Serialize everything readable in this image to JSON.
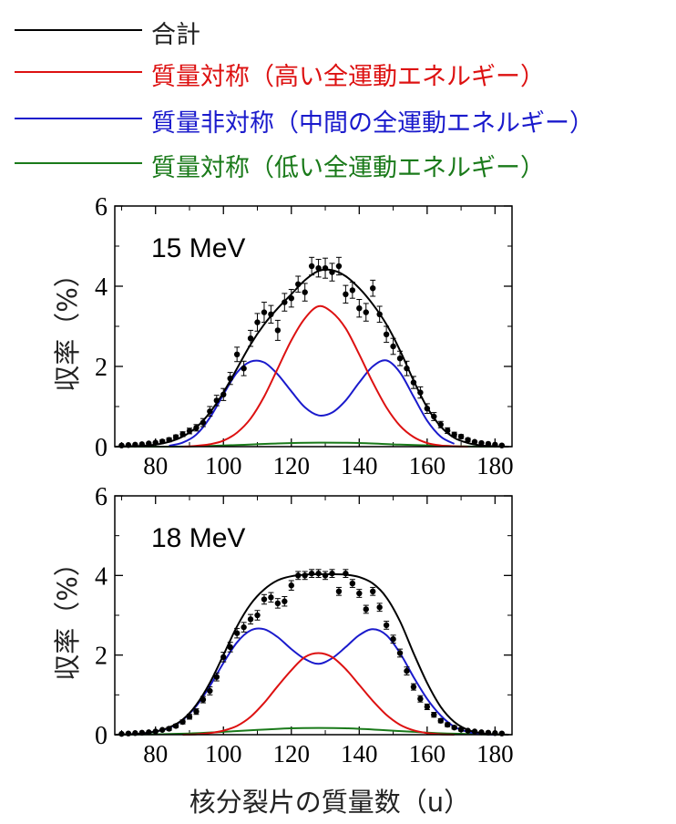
{
  "legend": {
    "items": [
      {
        "label": "合計",
        "color": "#000000"
      },
      {
        "label": "質量対称（高い全運動エネルギー）",
        "color": "#dd1111"
      },
      {
        "label": "質量非対称（中間の全運動エネルギー）",
        "color": "#1a1acc"
      },
      {
        "label": "質量対称（低い全運動エネルギー）",
        "color": "#1a7a1a"
      }
    ]
  },
  "xlabel": "核分裂片の質量数（u）",
  "chart_data": [
    {
      "type": "line",
      "title": "15 MeV",
      "ylabel": "収率（%）",
      "xlim": [
        68,
        185
      ],
      "ylim": [
        0,
        6
      ],
      "x_ticks": [
        80,
        100,
        120,
        140,
        160,
        180
      ],
      "y_ticks": [
        0,
        2,
        4,
        6
      ],
      "series": [
        {
          "name": "合計",
          "color": "#000000",
          "x": [
            68,
            72,
            76,
            80,
            84,
            88,
            92,
            96,
            100,
            104,
            108,
            112,
            116,
            120,
            124,
            128,
            132,
            136,
            140,
            144,
            148,
            152,
            156,
            160,
            164,
            168,
            172,
            176,
            180,
            184
          ],
          "values": [
            0.0,
            0.01,
            0.02,
            0.05,
            0.12,
            0.25,
            0.48,
            0.85,
            1.35,
            1.95,
            2.55,
            3.05,
            3.45,
            3.8,
            4.15,
            4.38,
            4.4,
            4.25,
            3.95,
            3.55,
            3.05,
            2.4,
            1.65,
            0.98,
            0.5,
            0.22,
            0.09,
            0.03,
            0.01,
            0.0
          ]
        },
        {
          "name": "質量対称（高い全運動エネルギー）",
          "color": "#dd1111",
          "x": [
            88,
            92,
            96,
            100,
            104,
            108,
            112,
            116,
            120,
            124,
            128,
            132,
            136,
            140,
            144,
            148,
            152,
            156,
            160,
            164,
            168,
            172
          ],
          "values": [
            0.0,
            0.02,
            0.06,
            0.15,
            0.35,
            0.7,
            1.25,
            1.95,
            2.65,
            3.2,
            3.5,
            3.35,
            2.95,
            2.3,
            1.6,
            0.98,
            0.52,
            0.24,
            0.09,
            0.03,
            0.01,
            0.0
          ]
        },
        {
          "name": "質量非対称（中間の全運動エネルギー）",
          "color": "#1a1acc",
          "x": [
            84,
            88,
            92,
            96,
            100,
            104,
            108,
            112,
            116,
            120,
            124,
            128,
            132,
            136,
            140,
            144,
            148,
            152,
            156,
            160,
            164,
            168
          ],
          "values": [
            0.02,
            0.1,
            0.3,
            0.72,
            1.3,
            1.85,
            2.12,
            2.1,
            1.8,
            1.38,
            0.98,
            0.78,
            0.85,
            1.15,
            1.6,
            2.0,
            2.15,
            1.85,
            1.25,
            0.65,
            0.25,
            0.07
          ]
        },
        {
          "name": "質量対称（低い全運動エネルギー）",
          "color": "#1a7a1a",
          "x": [
            68,
            80,
            92,
            104,
            116,
            128,
            140,
            152,
            164,
            176,
            184
          ],
          "values": [
            0.0,
            0.0,
            0.01,
            0.04,
            0.08,
            0.1,
            0.09,
            0.05,
            0.02,
            0.0,
            0.0
          ]
        }
      ],
      "points": {
        "x": [
          70,
          72,
          74,
          76,
          78,
          80,
          82,
          84,
          86,
          88,
          90,
          92,
          94,
          96,
          98,
          100,
          102,
          104,
          106,
          108,
          110,
          112,
          114,
          116,
          118,
          120,
          122,
          124,
          126,
          128,
          130,
          132,
          134,
          136,
          138,
          140,
          142,
          144,
          146,
          148,
          150,
          152,
          154,
          156,
          158,
          160,
          162,
          164,
          166,
          168,
          170,
          172,
          174,
          176,
          178,
          180,
          182
        ],
        "y": [
          0.03,
          0.04,
          0.05,
          0.06,
          0.08,
          0.1,
          0.13,
          0.17,
          0.24,
          0.31,
          0.39,
          0.47,
          0.6,
          0.88,
          1.15,
          1.3,
          1.7,
          2.3,
          1.95,
          2.7,
          3.1,
          3.35,
          3.3,
          2.9,
          3.6,
          3.7,
          4.05,
          3.85,
          4.5,
          4.45,
          4.45,
          4.35,
          4.5,
          3.8,
          3.9,
          3.45,
          3.35,
          3.95,
          3.3,
          2.8,
          2.5,
          2.2,
          1.95,
          1.6,
          1.35,
          0.95,
          0.75,
          0.55,
          0.4,
          0.3,
          0.25,
          0.17,
          0.12,
          0.09,
          0.07,
          0.05,
          0.03
        ],
        "err": [
          0.02,
          0.02,
          0.02,
          0.02,
          0.03,
          0.03,
          0.04,
          0.05,
          0.05,
          0.06,
          0.07,
          0.08,
          0.1,
          0.12,
          0.13,
          0.15,
          0.15,
          0.18,
          0.18,
          0.2,
          0.22,
          0.25,
          0.22,
          0.25,
          0.22,
          0.22,
          0.2,
          0.22,
          0.22,
          0.22,
          0.25,
          0.22,
          0.22,
          0.22,
          0.2,
          0.22,
          0.22,
          0.2,
          0.2,
          0.2,
          0.2,
          0.18,
          0.18,
          0.15,
          0.14,
          0.12,
          0.1,
          0.08,
          0.07,
          0.06,
          0.05,
          0.04,
          0.03,
          0.03,
          0.03,
          0.02,
          0.02
        ]
      }
    },
    {
      "type": "line",
      "title": "18 MeV",
      "ylabel": "収率（%）",
      "xlim": [
        68,
        185
      ],
      "ylim": [
        0,
        6
      ],
      "x_ticks": [
        80,
        100,
        120,
        140,
        160,
        180
      ],
      "y_ticks": [
        0,
        2,
        4,
        6
      ],
      "series": [
        {
          "name": "合計",
          "color": "#000000",
          "x": [
            68,
            72,
            76,
            80,
            84,
            88,
            92,
            96,
            100,
            104,
            108,
            112,
            116,
            120,
            124,
            128,
            132,
            136,
            140,
            144,
            148,
            152,
            156,
            160,
            164,
            168,
            172,
            176,
            180,
            184
          ],
          "values": [
            0.0,
            0.01,
            0.03,
            0.08,
            0.18,
            0.38,
            0.75,
            1.3,
            2.0,
            2.72,
            3.28,
            3.65,
            3.88,
            3.98,
            4.02,
            4.03,
            4.03,
            4.02,
            3.96,
            3.8,
            3.45,
            2.85,
            2.05,
            1.3,
            0.7,
            0.32,
            0.12,
            0.04,
            0.01,
            0.0
          ]
        },
        {
          "name": "質量対称（高い全運動エネルギー）",
          "color": "#dd1111",
          "x": [
            88,
            92,
            96,
            100,
            104,
            108,
            112,
            116,
            120,
            124,
            128,
            132,
            136,
            140,
            144,
            148,
            152,
            156,
            160,
            164,
            168
          ],
          "values": [
            0.0,
            0.01,
            0.04,
            0.1,
            0.22,
            0.45,
            0.8,
            1.22,
            1.62,
            1.95,
            2.05,
            1.95,
            1.65,
            1.25,
            0.85,
            0.5,
            0.25,
            0.11,
            0.04,
            0.01,
            0.0
          ]
        },
        {
          "name": "質量非対称（中間の全運動エネルギー）",
          "color": "#1a1acc",
          "x": [
            72,
            76,
            80,
            84,
            88,
            92,
            96,
            100,
            104,
            108,
            112,
            116,
            120,
            124,
            128,
            132,
            136,
            140,
            144,
            148,
            152,
            156,
            160,
            164,
            168,
            172,
            176,
            180
          ],
          "values": [
            0.01,
            0.03,
            0.08,
            0.17,
            0.37,
            0.72,
            1.22,
            1.8,
            2.32,
            2.62,
            2.65,
            2.45,
            2.15,
            1.9,
            1.78,
            1.92,
            2.2,
            2.5,
            2.65,
            2.5,
            2.05,
            1.45,
            0.9,
            0.48,
            0.2,
            0.07,
            0.02,
            0.0
          ]
        },
        {
          "name": "質量対称（低い全運動エネルギー）",
          "color": "#1a7a1a",
          "x": [
            68,
            80,
            90,
            100,
            110,
            120,
            128,
            136,
            146,
            156,
            166,
            176,
            184
          ],
          "values": [
            0.0,
            0.01,
            0.03,
            0.07,
            0.12,
            0.16,
            0.17,
            0.16,
            0.12,
            0.07,
            0.03,
            0.01,
            0.0
          ]
        }
      ],
      "points": {
        "x": [
          70,
          72,
          74,
          76,
          78,
          80,
          82,
          84,
          86,
          88,
          90,
          92,
          94,
          96,
          98,
          100,
          102,
          104,
          106,
          108,
          110,
          112,
          114,
          116,
          118,
          120,
          122,
          124,
          126,
          128,
          130,
          132,
          134,
          136,
          138,
          140,
          142,
          144,
          146,
          148,
          150,
          152,
          154,
          156,
          158,
          160,
          162,
          164,
          166,
          168,
          170,
          172,
          174,
          176,
          178,
          180,
          182
        ],
        "y": [
          0.02,
          0.03,
          0.04,
          0.05,
          0.06,
          0.08,
          0.12,
          0.15,
          0.22,
          0.32,
          0.45,
          0.58,
          0.88,
          1.1,
          1.45,
          1.95,
          2.2,
          2.55,
          2.7,
          2.9,
          3.0,
          3.4,
          3.45,
          3.3,
          3.35,
          3.75,
          4.0,
          4.0,
          4.05,
          4.05,
          4.0,
          4.05,
          3.6,
          4.05,
          3.8,
          3.55,
          3.15,
          3.6,
          3.2,
          2.75,
          2.4,
          2.05,
          1.6,
          1.2,
          0.9,
          0.7,
          0.5,
          0.35,
          0.25,
          0.18,
          0.13,
          0.1,
          0.08,
          0.06,
          0.05,
          0.04,
          0.03
        ],
        "err": [
          0.02,
          0.02,
          0.02,
          0.02,
          0.02,
          0.03,
          0.03,
          0.04,
          0.04,
          0.05,
          0.06,
          0.07,
          0.08,
          0.1,
          0.1,
          0.12,
          0.12,
          0.12,
          0.12,
          0.12,
          0.12,
          0.12,
          0.12,
          0.12,
          0.12,
          0.12,
          0.1,
          0.1,
          0.1,
          0.1,
          0.1,
          0.1,
          0.1,
          0.1,
          0.1,
          0.1,
          0.1,
          0.1,
          0.1,
          0.1,
          0.1,
          0.1,
          0.1,
          0.08,
          0.08,
          0.07,
          0.06,
          0.05,
          0.05,
          0.04,
          0.04,
          0.03,
          0.03,
          0.03,
          0.02,
          0.02,
          0.02
        ]
      }
    }
  ]
}
